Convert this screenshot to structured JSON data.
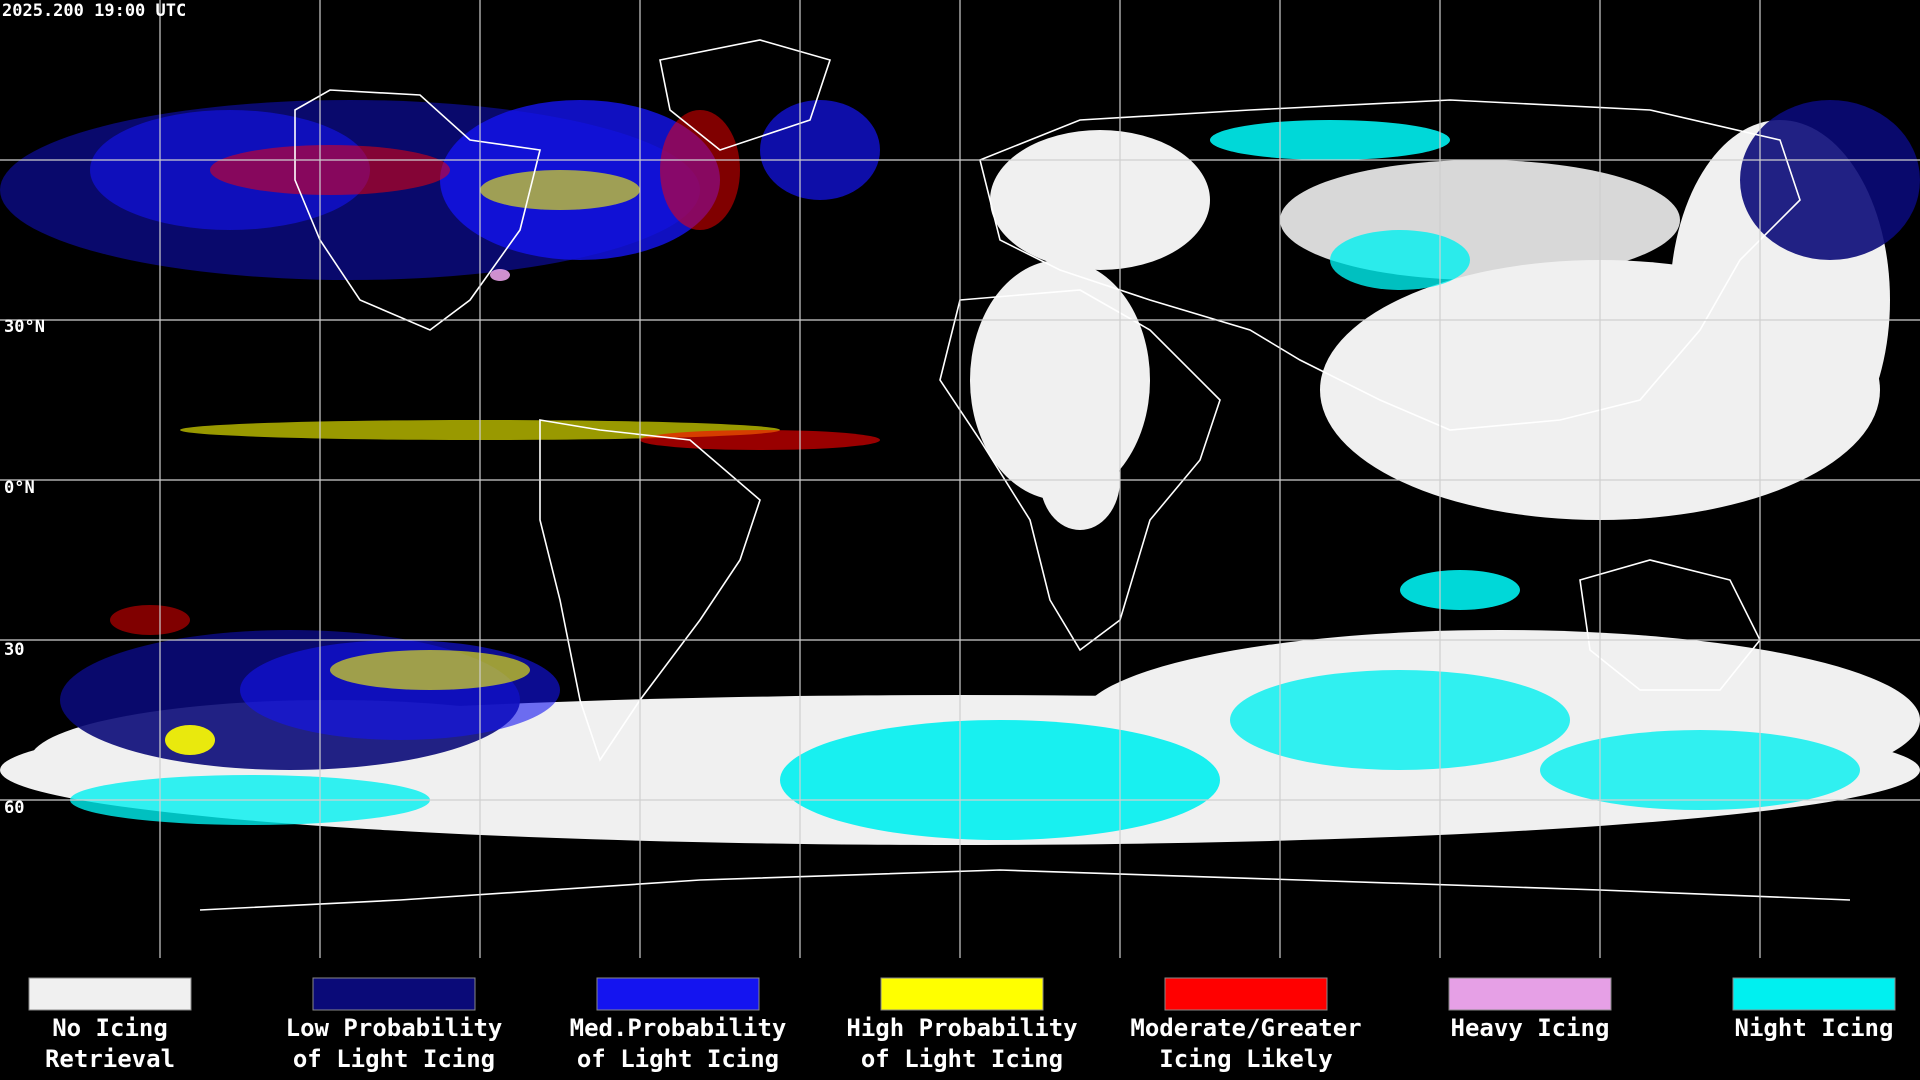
{
  "header": {
    "timestamp": "2025.200 19:00 UTC"
  },
  "map": {
    "latitude_labels": [
      "30°N",
      "0°N",
      "30",
      "60"
    ]
  },
  "legend": {
    "items": [
      {
        "label": [
          "No Icing",
          "Retrieval"
        ],
        "color": "#f0f0f0"
      },
      {
        "label": [
          "Low Probability",
          "of Light Icing"
        ],
        "color": "#0a0a78"
      },
      {
        "label": [
          "Med.Probability",
          "of Light Icing"
        ],
        "color": "#1414f0"
      },
      {
        "label": [
          "High Probability",
          "of Light Icing"
        ],
        "color": "#ffff00"
      },
      {
        "label": [
          "Moderate/Greater",
          "Icing Likely"
        ],
        "color": "#ff0000"
      },
      {
        "label": [
          "Heavy Icing"
        ],
        "color": "#e6a0e6"
      },
      {
        "label": [
          "Night Icing"
        ],
        "color": "#00f0f0"
      }
    ]
  }
}
